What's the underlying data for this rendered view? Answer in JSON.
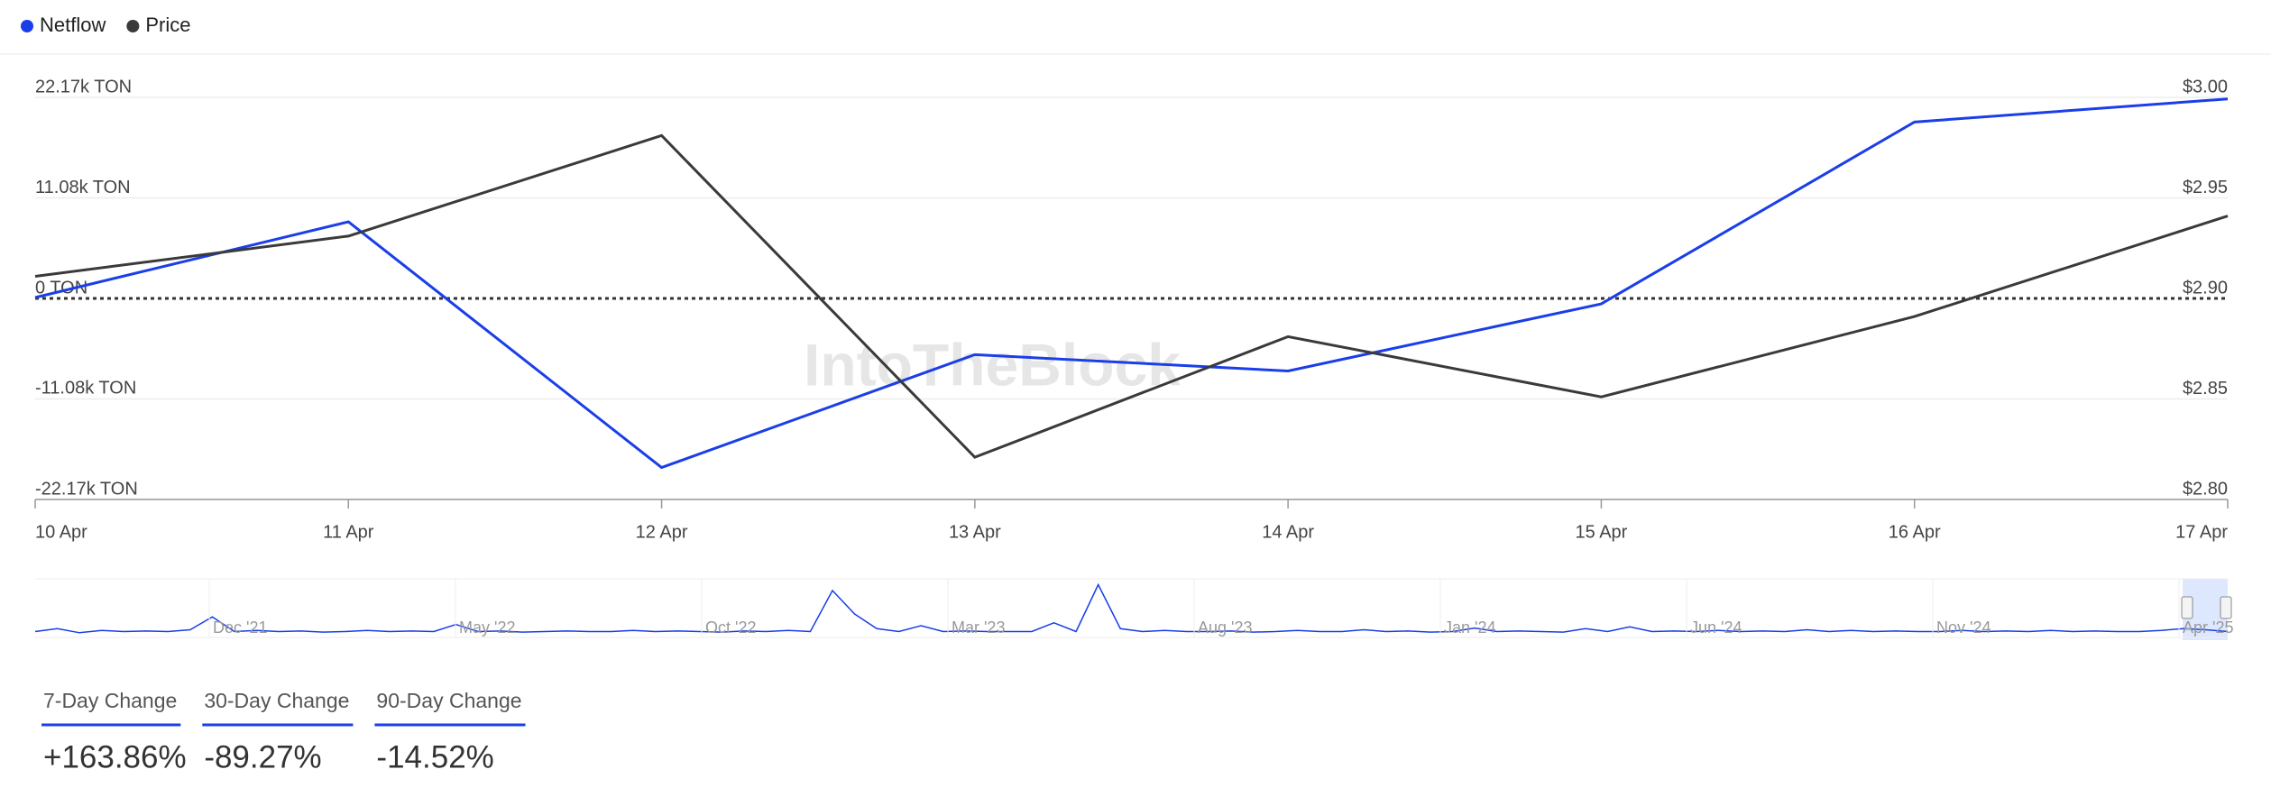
{
  "chart_data": {
    "type": "line",
    "watermark": "IntoTheBlock",
    "categories": [
      "10 Apr",
      "11 Apr",
      "12 Apr",
      "13 Apr",
      "14 Apr",
      "15 Apr",
      "16 Apr",
      "17 Apr"
    ],
    "series": [
      {
        "name": "Netflow",
        "color": "#1a3ee8",
        "values": [
          100,
          8450,
          -18650,
          -6200,
          -8000,
          -600,
          19450,
          22000
        ]
      },
      {
        "name": "Price",
        "color": "#3a3a3a",
        "axis": "y2",
        "values": [
          2.911,
          2.931,
          2.981,
          2.821,
          2.881,
          2.851,
          2.891,
          2.941
        ]
      }
    ],
    "ylim": [
      -22170,
      22170
    ],
    "yticks": [
      {
        "value": 22170,
        "label": "22.17k TON"
      },
      {
        "value": 11080,
        "label": "11.08k TON"
      },
      {
        "value": 0,
        "label": "0 TON"
      },
      {
        "value": -11080,
        "label": "-11.08k TON"
      },
      {
        "value": -22170,
        "label": "-22.17k TON"
      }
    ],
    "y2lim": [
      2.8,
      3.0
    ],
    "y2ticks": [
      {
        "value": 3.0,
        "label": "$3.00"
      },
      {
        "value": 2.95,
        "label": "$2.95"
      },
      {
        "value": 2.9,
        "label": "$2.90"
      },
      {
        "value": 2.85,
        "label": "$2.85"
      },
      {
        "value": 2.8,
        "label": "$2.80"
      }
    ],
    "grid": true,
    "legend": "top-left"
  },
  "navigator": {
    "labels": [
      "Dec '21",
      "May '22",
      "Oct '22",
      "Mar '23",
      "Aug '23",
      "Jan '24",
      "Jun '24",
      "Nov '24",
      "Apr '25"
    ],
    "ylim": [
      0,
      10
    ],
    "values": [
      1,
      1.5,
      0.8,
      1.2,
      1,
      1.1,
      1,
      1.3,
      3.5,
      1,
      1.2,
      1,
      1.1,
      0.9,
      1,
      1.2,
      1,
      1.1,
      1,
      2.2,
      1,
      1.1,
      0.9,
      1,
      1.1,
      1,
      1,
      1.2,
      1,
      1.1,
      1,
      0.9,
      1.1,
      1,
      1.2,
      1,
      8,
      4,
      1.5,
      1,
      2,
      1,
      1.1,
      1,
      1,
      1,
      2.5,
      1,
      9,
      1.5,
      1,
      1.2,
      1,
      1,
      1.1,
      0.9,
      1,
      1.2,
      1,
      1,
      1.3,
      1,
      1.1,
      0.9,
      1,
      1.6,
      1,
      1.1,
      1,
      0.9,
      1.5,
      1,
      1.8,
      1,
      1.1,
      1,
      1.2,
      1,
      1.1,
      1,
      1.3,
      1,
      1.2,
      1,
      1.1,
      1,
      1,
      1.2,
      1,
      1.1,
      1,
      1.2,
      1,
      1.1,
      1,
      1,
      1.2,
      1.5,
      1.3,
      1
    ]
  },
  "stats": [
    {
      "title": "7-Day Change",
      "value": "+163.86%"
    },
    {
      "title": "30-Day Change",
      "value": "-89.27%"
    },
    {
      "title": "90-Day Change",
      "value": "-14.52%"
    }
  ]
}
